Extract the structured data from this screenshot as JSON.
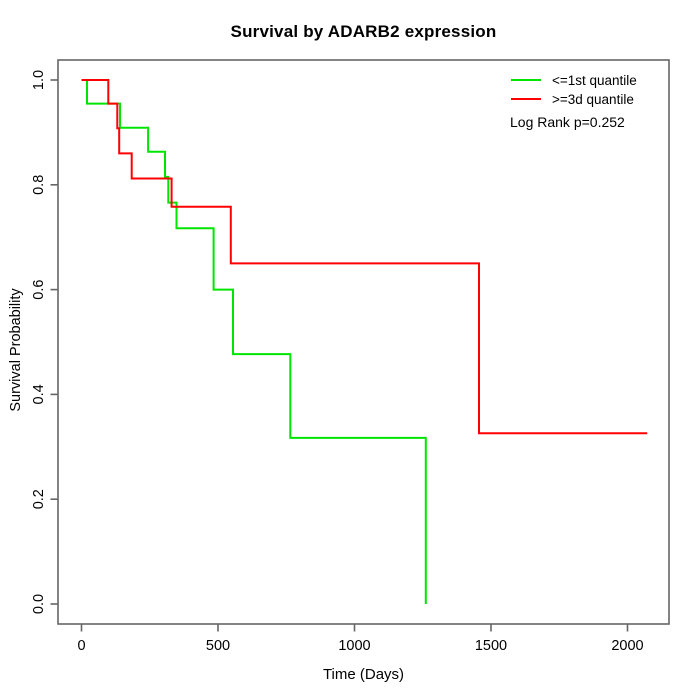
{
  "chart_data": {
    "type": "line",
    "subtype": "kaplan-meier-step",
    "title": "Survival by ADARB2 expression",
    "xlabel": "Time (Days)",
    "ylabel": "Survival Probability",
    "annotation": "Log Rank p=0.252",
    "grid": false,
    "legend_position": "top-right",
    "x_axis": {
      "tick_values": [
        0,
        500,
        1000,
        1500,
        2000
      ],
      "tick_labels": [
        "0",
        "500",
        "1000",
        "1500",
        "2000"
      ],
      "range": [
        0,
        2100
      ]
    },
    "y_axis": {
      "tick_values": [
        0.0,
        0.2,
        0.4,
        0.6,
        0.8,
        1.0
      ],
      "tick_labels": [
        "0.0",
        "0.2",
        "0.4",
        "0.6",
        "0.8",
        "1.0"
      ],
      "range": [
        0,
        1
      ]
    },
    "series": [
      {
        "name": "<=1st quantile",
        "color": "#00E500",
        "end_time": 1261,
        "steps": [
          [
            0,
            1.0
          ],
          [
            20,
            0.955
          ],
          [
            141,
            0.909
          ],
          [
            244,
            0.863
          ],
          [
            306,
            0.815
          ],
          [
            318,
            0.766
          ],
          [
            348,
            0.717
          ],
          [
            484,
            0.6
          ],
          [
            555,
            0.477
          ],
          [
            765,
            0.317
          ],
          [
            1261,
            0.0
          ]
        ]
      },
      {
        "name": ">=3d quantile",
        "color": "#FF0000",
        "end_time": 2072,
        "steps": [
          [
            0,
            1.0
          ],
          [
            98,
            0.955
          ],
          [
            131,
            0.908
          ],
          [
            138,
            0.86
          ],
          [
            184,
            0.812
          ],
          [
            330,
            0.758
          ],
          [
            547,
            0.65
          ],
          [
            1456,
            0.326
          ]
        ]
      }
    ]
  }
}
